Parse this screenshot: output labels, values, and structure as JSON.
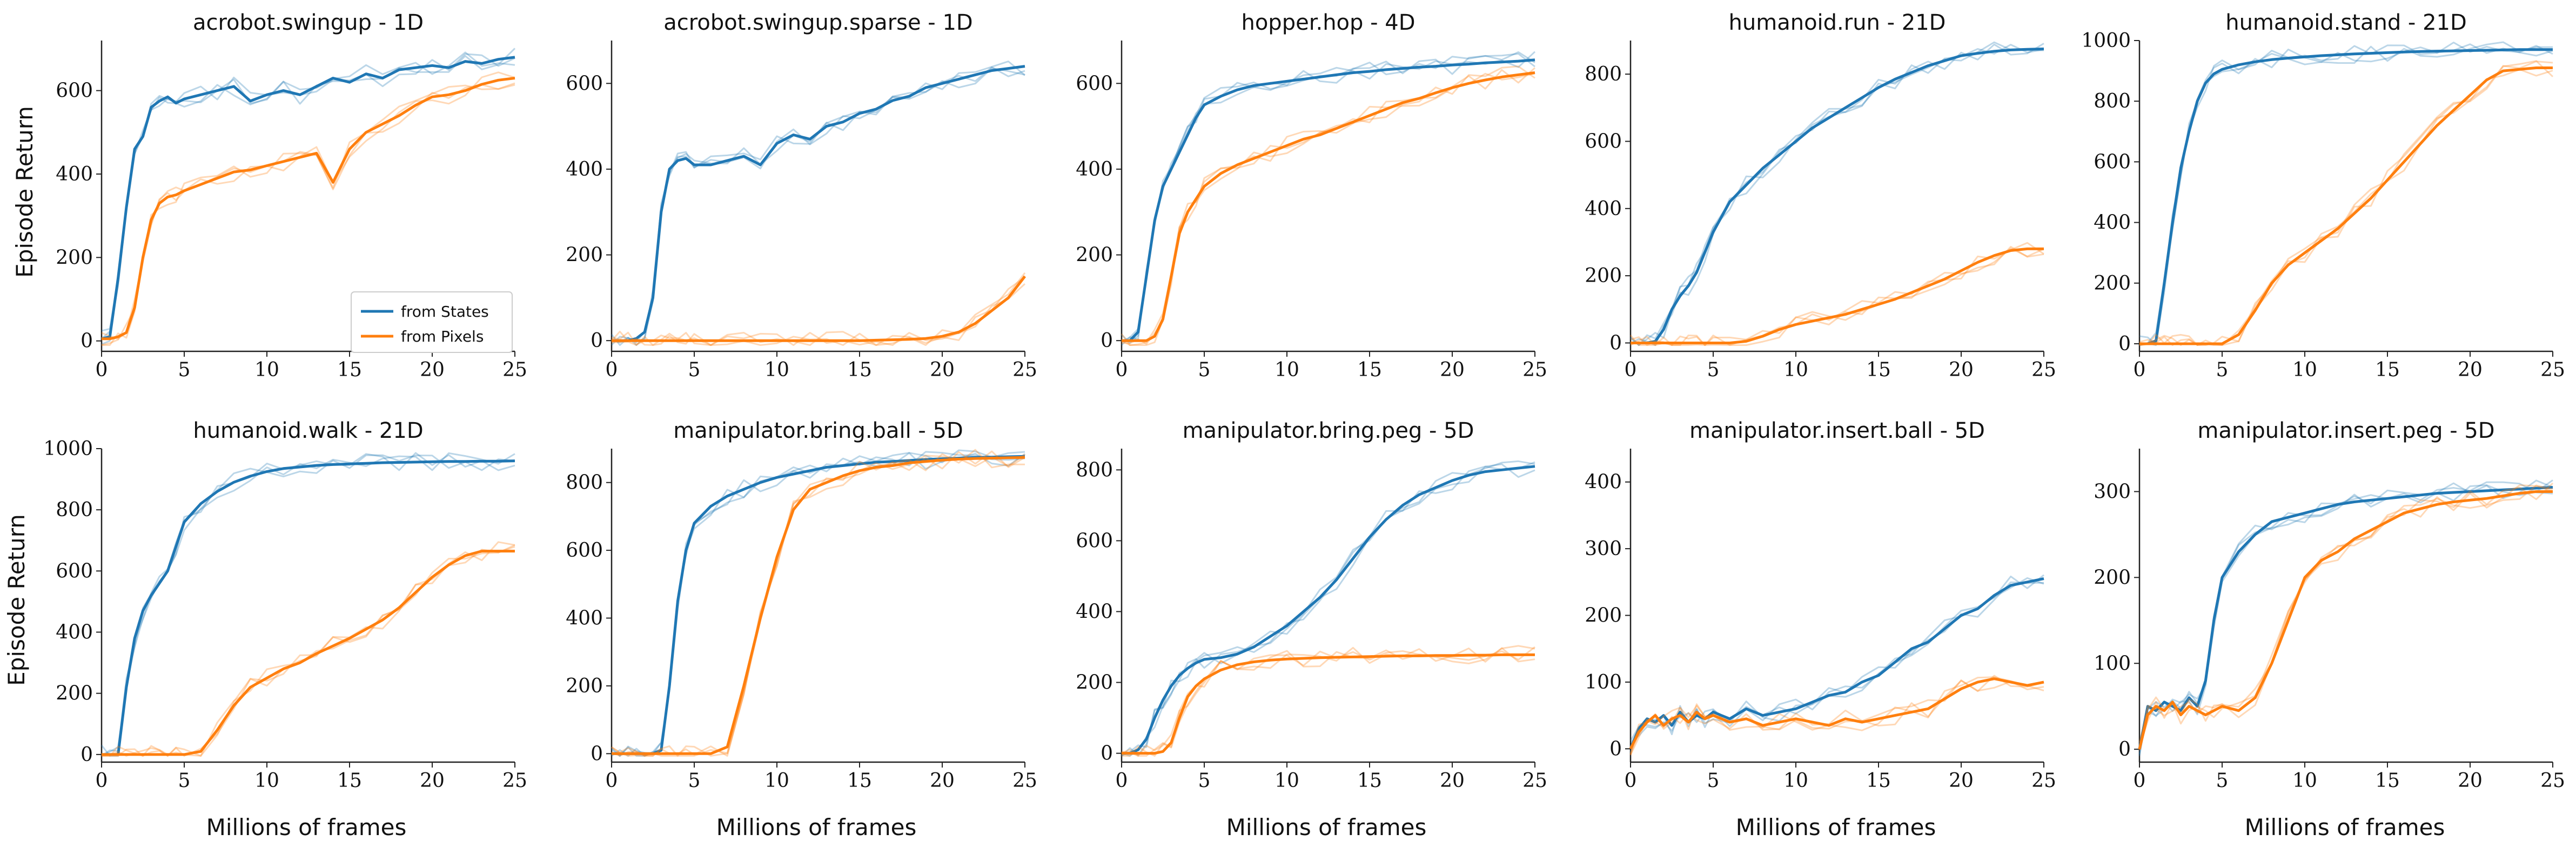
{
  "figure": {
    "xlabel": "Millions of frames",
    "ylabel": "Episode Return",
    "legend": {
      "placement": "bottom-right",
      "items": [
        "from States",
        "from Pixels"
      ]
    },
    "colors": {
      "states": "#1f77b4",
      "pixels": "#ff7f0e"
    }
  },
  "chart_data": [
    {
      "type": "line",
      "title": "acrobot.swingup - 1D",
      "xlim": [
        0,
        25
      ],
      "ylim": [
        -25,
        720
      ],
      "xticks": [
        0,
        5,
        10,
        15,
        20,
        25
      ],
      "yticks": [
        0,
        200,
        400,
        600
      ],
      "x": [
        0,
        0.5,
        1,
        1.5,
        2,
        2.5,
        3,
        3.5,
        4,
        4.5,
        5,
        6,
        7,
        8,
        9,
        10,
        11,
        12,
        13,
        14,
        15,
        16,
        17,
        18,
        19,
        20,
        21,
        22,
        23,
        24,
        25
      ],
      "series": [
        {
          "name": "from States",
          "values": [
            5,
            10,
            150,
            320,
            460,
            490,
            560,
            575,
            585,
            570,
            580,
            590,
            600,
            610,
            575,
            590,
            600,
            590,
            610,
            630,
            620,
            640,
            630,
            650,
            655,
            660,
            655,
            670,
            665,
            675,
            680
          ]
        },
        {
          "name": "from Pixels",
          "values": [
            5,
            5,
            10,
            20,
            80,
            200,
            290,
            330,
            345,
            350,
            360,
            375,
            390,
            405,
            410,
            420,
            430,
            440,
            450,
            380,
            460,
            500,
            520,
            540,
            565,
            585,
            590,
            600,
            615,
            625,
            630
          ]
        }
      ]
    },
    {
      "type": "line",
      "title": "acrobot.swingup.sparse - 1D",
      "xlim": [
        0,
        25
      ],
      "ylim": [
        -25,
        700
      ],
      "xticks": [
        0,
        5,
        10,
        15,
        20,
        25
      ],
      "yticks": [
        0,
        200,
        400,
        600
      ],
      "x": [
        0,
        0.5,
        1,
        1.5,
        2,
        2.5,
        3,
        3.5,
        4,
        4.5,
        5,
        6,
        7,
        8,
        9,
        10,
        11,
        12,
        13,
        14,
        15,
        16,
        17,
        18,
        19,
        20,
        21,
        22,
        23,
        24,
        25
      ],
      "series": [
        {
          "name": "from States",
          "values": [
            0,
            0,
            0,
            5,
            20,
            100,
            300,
            400,
            420,
            425,
            410,
            410,
            420,
            430,
            410,
            460,
            480,
            470,
            500,
            510,
            530,
            540,
            560,
            570,
            590,
            600,
            610,
            620,
            630,
            635,
            640
          ]
        },
        {
          "name": "from Pixels",
          "values": [
            0,
            0,
            0,
            0,
            0,
            0,
            0,
            0,
            0,
            0,
            0,
            0,
            0,
            0,
            0,
            0,
            0,
            0,
            0,
            0,
            0,
            1,
            2,
            3,
            5,
            10,
            20,
            40,
            70,
            100,
            150
          ]
        }
      ]
    },
    {
      "type": "line",
      "title": "hopper.hop - 4D",
      "xlim": [
        0,
        25
      ],
      "ylim": [
        -25,
        700
      ],
      "xticks": [
        0,
        5,
        10,
        15,
        20,
        25
      ],
      "yticks": [
        0,
        200,
        400,
        600
      ],
      "x": [
        0,
        0.5,
        1,
        1.5,
        2,
        2.5,
        3,
        3.5,
        4,
        4.5,
        5,
        6,
        7,
        8,
        9,
        10,
        11,
        12,
        13,
        14,
        15,
        16,
        17,
        18,
        19,
        20,
        21,
        22,
        23,
        24,
        25
      ],
      "series": [
        {
          "name": "from States",
          "values": [
            0,
            0,
            20,
            150,
            280,
            360,
            400,
            440,
            480,
            520,
            550,
            570,
            585,
            595,
            600,
            605,
            610,
            615,
            620,
            625,
            628,
            632,
            635,
            638,
            640,
            643,
            645,
            648,
            650,
            652,
            655
          ]
        },
        {
          "name": "from Pixels",
          "values": [
            0,
            0,
            0,
            0,
            10,
            50,
            150,
            250,
            300,
            330,
            360,
            390,
            410,
            425,
            440,
            455,
            470,
            480,
            495,
            510,
            525,
            540,
            555,
            565,
            578,
            590,
            600,
            608,
            615,
            620,
            625
          ]
        }
      ]
    },
    {
      "type": "line",
      "title": "humanoid.run - 21D",
      "xlim": [
        0,
        25
      ],
      "ylim": [
        -25,
        900
      ],
      "xticks": [
        0,
        5,
        10,
        15,
        20,
        25
      ],
      "yticks": [
        0,
        200,
        400,
        600,
        800
      ],
      "x": [
        0,
        0.5,
        1,
        1.5,
        2,
        2.5,
        3,
        3.5,
        4,
        4.5,
        5,
        6,
        7,
        8,
        9,
        10,
        11,
        12,
        13,
        14,
        15,
        16,
        17,
        18,
        19,
        20,
        21,
        22,
        23,
        24,
        25
      ],
      "series": [
        {
          "name": "from States",
          "values": [
            0,
            0,
            0,
            5,
            40,
            100,
            140,
            170,
            210,
            270,
            330,
            420,
            470,
            520,
            560,
            600,
            640,
            670,
            700,
            730,
            760,
            785,
            805,
            825,
            840,
            855,
            862,
            868,
            872,
            874,
            875
          ]
        },
        {
          "name": "from Pixels",
          "values": [
            0,
            0,
            0,
            0,
            0,
            0,
            0,
            0,
            0,
            0,
            0,
            0,
            5,
            20,
            40,
            55,
            65,
            75,
            85,
            100,
            115,
            130,
            150,
            170,
            190,
            215,
            240,
            260,
            275,
            280,
            280
          ]
        }
      ]
    },
    {
      "type": "line",
      "title": "humanoid.stand - 21D",
      "xlim": [
        0,
        25
      ],
      "ylim": [
        -25,
        1000
      ],
      "xticks": [
        0,
        5,
        10,
        15,
        20,
        25
      ],
      "yticks": [
        0,
        200,
        400,
        600,
        800,
        1000
      ],
      "x": [
        0,
        0.5,
        1,
        1.5,
        2,
        2.5,
        3,
        3.5,
        4,
        4.5,
        5,
        6,
        7,
        8,
        9,
        10,
        11,
        12,
        13,
        14,
        15,
        16,
        17,
        18,
        19,
        20,
        21,
        22,
        23,
        24,
        25
      ],
      "series": [
        {
          "name": "from States",
          "values": [
            0,
            0,
            10,
            200,
            400,
            580,
            700,
            800,
            860,
            890,
            905,
            920,
            930,
            937,
            942,
            946,
            950,
            953,
            956,
            958,
            960,
            962,
            964,
            965,
            966,
            967,
            968,
            969,
            970,
            970,
            970
          ]
        },
        {
          "name": "from Pixels",
          "values": [
            0,
            0,
            0,
            0,
            0,
            0,
            0,
            0,
            0,
            0,
            0,
            30,
            110,
            200,
            260,
            300,
            340,
            380,
            430,
            480,
            540,
            600,
            660,
            720,
            770,
            820,
            870,
            900,
            905,
            910,
            910
          ]
        }
      ]
    },
    {
      "type": "line",
      "title": "humanoid.walk - 21D",
      "xlim": [
        0,
        25
      ],
      "ylim": [
        -25,
        1000
      ],
      "xticks": [
        0,
        5,
        10,
        15,
        20,
        25
      ],
      "yticks": [
        0,
        200,
        400,
        600,
        800,
        1000
      ],
      "x": [
        0,
        0.5,
        1,
        1.5,
        2,
        2.5,
        3,
        3.5,
        4,
        4.5,
        5,
        6,
        7,
        8,
        9,
        10,
        11,
        12,
        13,
        14,
        15,
        16,
        17,
        18,
        19,
        20,
        21,
        22,
        23,
        24,
        25
      ],
      "series": [
        {
          "name": "from States",
          "values": [
            0,
            0,
            0,
            220,
            380,
            470,
            520,
            560,
            600,
            680,
            760,
            820,
            860,
            890,
            910,
            925,
            935,
            940,
            945,
            948,
            950,
            952,
            954,
            955,
            956,
            957,
            958,
            958,
            959,
            959,
            960
          ]
        },
        {
          "name": "from Pixels",
          "values": [
            0,
            0,
            0,
            0,
            0,
            0,
            0,
            0,
            0,
            0,
            0,
            10,
            80,
            160,
            220,
            250,
            280,
            300,
            330,
            355,
            380,
            410,
            440,
            480,
            530,
            580,
            620,
            650,
            665,
            665,
            665
          ]
        }
      ]
    },
    {
      "type": "line",
      "title": "manipulator.bring.ball - 5D",
      "xlim": [
        0,
        25
      ],
      "ylim": [
        -25,
        900
      ],
      "xticks": [
        0,
        5,
        10,
        15,
        20,
        25
      ],
      "yticks": [
        0,
        200,
        400,
        600,
        800
      ],
      "x": [
        0,
        0.5,
        1,
        1.5,
        2,
        2.5,
        3,
        3.5,
        4,
        4.5,
        5,
        6,
        7,
        8,
        9,
        10,
        11,
        12,
        13,
        14,
        15,
        16,
        17,
        18,
        19,
        20,
        21,
        22,
        23,
        24,
        25
      ],
      "series": [
        {
          "name": "from States",
          "values": [
            0,
            0,
            0,
            0,
            0,
            0,
            10,
            200,
            450,
            600,
            680,
            730,
            760,
            780,
            800,
            815,
            825,
            835,
            845,
            850,
            855,
            860,
            862,
            865,
            868,
            870,
            872,
            874,
            875,
            876,
            877
          ]
        },
        {
          "name": "from Pixels",
          "values": [
            0,
            0,
            0,
            0,
            0,
            0,
            0,
            0,
            0,
            0,
            0,
            0,
            20,
            200,
            400,
            580,
            720,
            780,
            800,
            820,
            835,
            845,
            850,
            858,
            862,
            866,
            869,
            871,
            872,
            873,
            874
          ]
        }
      ]
    },
    {
      "type": "line",
      "title": "manipulator.bring.peg - 5D",
      "xlim": [
        0,
        25
      ],
      "ylim": [
        -25,
        860
      ],
      "xticks": [
        0,
        5,
        10,
        15,
        20,
        25
      ],
      "yticks": [
        0,
        200,
        400,
        600,
        800
      ],
      "x": [
        0,
        0.5,
        1,
        1.5,
        2,
        2.5,
        3,
        3.5,
        4,
        4.5,
        5,
        6,
        7,
        8,
        9,
        10,
        11,
        12,
        13,
        14,
        15,
        16,
        17,
        18,
        19,
        20,
        21,
        22,
        23,
        24,
        25
      ],
      "series": [
        {
          "name": "from States",
          "values": [
            0,
            0,
            10,
            40,
            100,
            150,
            190,
            220,
            240,
            255,
            265,
            270,
            280,
            300,
            330,
            360,
            400,
            440,
            490,
            550,
            610,
            660,
            700,
            730,
            750,
            770,
            785,
            795,
            800,
            805,
            810
          ]
        },
        {
          "name": "from Pixels",
          "values": [
            0,
            0,
            0,
            0,
            0,
            5,
            30,
            100,
            160,
            190,
            210,
            235,
            250,
            258,
            263,
            266,
            268,
            270,
            271,
            272,
            273,
            274,
            275,
            275,
            276,
            276,
            277,
            277,
            278,
            278,
            278
          ]
        }
      ]
    },
    {
      "type": "line",
      "title": "manipulator.insert.ball - 5D",
      "xlim": [
        0,
        25
      ],
      "ylim": [
        -20,
        450
      ],
      "xticks": [
        0,
        5,
        10,
        15,
        20,
        25
      ],
      "yticks": [
        0,
        100,
        200,
        300,
        400
      ],
      "x": [
        0,
        0.5,
        1,
        1.5,
        2,
        2.5,
        3,
        3.5,
        4,
        4.5,
        5,
        6,
        7,
        8,
        9,
        10,
        11,
        12,
        13,
        14,
        15,
        16,
        17,
        18,
        19,
        20,
        21,
        22,
        23,
        24,
        25
      ],
      "series": [
        {
          "name": "from States",
          "values": [
            0,
            30,
            45,
            40,
            50,
            35,
            55,
            40,
            50,
            45,
            55,
            45,
            60,
            50,
            55,
            60,
            70,
            80,
            85,
            100,
            110,
            130,
            150,
            160,
            180,
            200,
            210,
            230,
            245,
            250,
            255
          ]
        },
        {
          "name": "from Pixels",
          "values": [
            0,
            25,
            40,
            50,
            35,
            45,
            50,
            40,
            55,
            45,
            50,
            40,
            45,
            35,
            40,
            45,
            40,
            35,
            45,
            40,
            45,
            50,
            55,
            60,
            75,
            90,
            100,
            105,
            100,
            95,
            100
          ]
        }
      ]
    },
    {
      "type": "line",
      "title": "manipulator.insert.peg - 5D",
      "xlim": [
        0,
        25
      ],
      "ylim": [
        -15,
        350
      ],
      "xticks": [
        0,
        5,
        10,
        15,
        20,
        25
      ],
      "yticks": [
        0,
        100,
        200,
        300
      ],
      "x": [
        0,
        0.5,
        1,
        1.5,
        2,
        2.5,
        3,
        3.5,
        4,
        4.5,
        5,
        6,
        7,
        8,
        9,
        10,
        11,
        12,
        13,
        14,
        15,
        16,
        17,
        18,
        19,
        20,
        21,
        22,
        23,
        24,
        25
      ],
      "series": [
        {
          "name": "from States",
          "values": [
            0,
            50,
            45,
            55,
            50,
            45,
            60,
            50,
            80,
            150,
            200,
            230,
            250,
            265,
            270,
            275,
            280,
            285,
            288,
            290,
            292,
            294,
            296,
            298,
            299,
            300,
            301,
            302,
            303,
            304,
            305
          ]
        },
        {
          "name": "from Pixels",
          "values": [
            0,
            40,
            50,
            45,
            55,
            40,
            50,
            45,
            40,
            45,
            50,
            45,
            60,
            100,
            150,
            200,
            220,
            230,
            245,
            255,
            265,
            275,
            280,
            285,
            288,
            290,
            292,
            295,
            298,
            300,
            300
          ]
        }
      ]
    }
  ]
}
